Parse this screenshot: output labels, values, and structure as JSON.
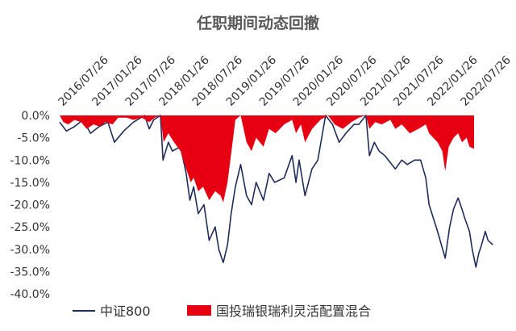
{
  "chart_data": {
    "type": "area",
    "title": "任职期间动态回撤",
    "xlabel": "",
    "ylabel": "",
    "x_ticks": [
      "2016/07/26",
      "2017/01/26",
      "2017/07/26",
      "2018/01/26",
      "2018/07/26",
      "2019/01/26",
      "2019/07/26",
      "2020/01/26",
      "2020/07/26",
      "2021/01/26",
      "2021/07/26",
      "2022/01/26",
      "2022/07/26"
    ],
    "y_ticks": [
      "0.0%",
      "-5.0%",
      "-10.0%",
      "-15.0%",
      "-20.0%",
      "-25.0%",
      "-30.0%",
      "-35.0%",
      "-40.0%"
    ],
    "ylim": [
      -40,
      0
    ],
    "x_range": [
      "2016/07/26",
      "2022/09/30"
    ],
    "grid": false,
    "legend_position": "bottom",
    "series": [
      {
        "name": "中证800",
        "kind": "line",
        "color": "#1f2d5a",
        "points": [
          [
            "2016/07/26",
            -1.5
          ],
          [
            "2016/09/01",
            -3.5
          ],
          [
            "2016/10/15",
            -2.5
          ],
          [
            "2016/11/30",
            -1.0
          ],
          [
            "2017/01/10",
            -4.0
          ],
          [
            "2017/02/26",
            -2.5
          ],
          [
            "2017/04/15",
            -1.5
          ],
          [
            "2017/05/20",
            -6.0
          ],
          [
            "2017/07/10",
            -3.5
          ],
          [
            "2017/09/01",
            -1.5
          ],
          [
            "2017/11/01",
            0.0
          ],
          [
            "2017/11/26",
            -3.0
          ],
          [
            "2017/12/20",
            -1.0
          ],
          [
            "2018/01/26",
            0.0
          ],
          [
            "2018/02/09",
            -10.0
          ],
          [
            "2018/03/10",
            -6.0
          ],
          [
            "2018/04/01",
            -8.0
          ],
          [
            "2018/05/15",
            -7.0
          ],
          [
            "2018/06/15",
            -13.0
          ],
          [
            "2018/07/05",
            -19.0
          ],
          [
            "2018/07/26",
            -16.0
          ],
          [
            "2018/08/20",
            -22.0
          ],
          [
            "2018/09/20",
            -20.0
          ],
          [
            "2018/10/18",
            -28.0
          ],
          [
            "2018/11/20",
            -25.0
          ],
          [
            "2018/12/10",
            -30.0
          ],
          [
            "2019/01/03",
            -33.0
          ],
          [
            "2019/01/26",
            -29.0
          ],
          [
            "2019/02/15",
            -22.0
          ],
          [
            "2019/03/10",
            -16.0
          ],
          [
            "2019/04/08",
            -11.0
          ],
          [
            "2019/05/10",
            -18.0
          ],
          [
            "2019/06/06",
            -20.0
          ],
          [
            "2019/07/01",
            -15.0
          ],
          [
            "2019/08/10",
            -19.0
          ],
          [
            "2019/09/10",
            -13.0
          ],
          [
            "2019/10/10",
            -15.0
          ],
          [
            "2019/12/01",
            -14.0
          ],
          [
            "2020/01/13",
            -9.0
          ],
          [
            "2020/02/03",
            -15.0
          ],
          [
            "2020/02/20",
            -10.0
          ],
          [
            "2020/03/23",
            -18.0
          ],
          [
            "2020/04/30",
            -12.0
          ],
          [
            "2020/06/01",
            -10.0
          ],
          [
            "2020/07/13",
            0.0
          ],
          [
            "2020/08/20",
            -2.0
          ],
          [
            "2020/09/25",
            -6.0
          ],
          [
            "2020/11/01",
            -4.0
          ],
          [
            "2020/12/15",
            -2.0
          ],
          [
            "2021/01/10",
            -2.0
          ],
          [
            "2021/02/18",
            0.0
          ],
          [
            "2021/03/09",
            -9.0
          ],
          [
            "2021/04/05",
            -6.0
          ],
          [
            "2021/05/01",
            -8.0
          ],
          [
            "2021/06/01",
            -9.0
          ],
          [
            "2021/07/28",
            -12.0
          ],
          [
            "2021/09/01",
            -10.0
          ],
          [
            "2021/10/01",
            -11.0
          ],
          [
            "2021/11/10",
            -10.0
          ],
          [
            "2021/12/13",
            -10.0
          ],
          [
            "2022/01/10",
            -14.0
          ],
          [
            "2022/01/28",
            -20.0
          ],
          [
            "2022/03/15",
            -26.0
          ],
          [
            "2022/04/26",
            -32.0
          ],
          [
            "2022/05/20",
            -25.0
          ],
          [
            "2022/06/10",
            -21.0
          ],
          [
            "2022/07/05",
            -18.5
          ],
          [
            "2022/07/26",
            -21.0
          ],
          [
            "2022/08/10",
            -23.0
          ],
          [
            "2022/09/05",
            -26.0
          ],
          [
            "2022/09/20",
            -30.0
          ],
          [
            "2022/09/30",
            -32.0
          ],
          [
            "2022/10/10",
            -34.0
          ],
          [
            "2022/10/25",
            -31.0
          ],
          [
            "2022/11/10",
            -29.0
          ],
          [
            "2022/11/30",
            -26.0
          ],
          [
            "2022/12/15",
            -28.0
          ],
          [
            "2023/01/10",
            -29.0
          ]
        ]
      },
      {
        "name": "国投瑞银瑞利灵活配置混合",
        "kind": "area",
        "color": "#e60012",
        "points": [
          [
            "2016/07/26",
            0.0
          ],
          [
            "2016/08/15",
            -1.5
          ],
          [
            "2016/09/10",
            -2.0
          ],
          [
            "2016/10/15",
            -1.0
          ],
          [
            "2016/11/20",
            -1.5
          ],
          [
            "2016/12/20",
            -3.0
          ],
          [
            "2017/01/26",
            -2.0
          ],
          [
            "2017/03/01",
            -2.5
          ],
          [
            "2017/04/01",
            -1.5
          ],
          [
            "2017/05/10",
            -2.0
          ],
          [
            "2017/06/10",
            -0.5
          ],
          [
            "2017/07/26",
            -0.5
          ],
          [
            "2017/09/01",
            -1.0
          ],
          [
            "2017/10/15",
            -0.5
          ],
          [
            "2017/11/26",
            -1.5
          ],
          [
            "2017/12/26",
            -0.5
          ],
          [
            "2018/01/26",
            0.0
          ],
          [
            "2018/02/12",
            -6.0
          ],
          [
            "2018/03/10",
            -4.0
          ],
          [
            "2018/04/10",
            -6.0
          ],
          [
            "2018/05/15",
            -8.0
          ],
          [
            "2018/06/15",
            -12.0
          ],
          [
            "2018/07/10",
            -15.0
          ],
          [
            "2018/07/26",
            -14.0
          ],
          [
            "2018/08/20",
            -17.0
          ],
          [
            "2018/09/15",
            -16.0
          ],
          [
            "2018/10/18",
            -19.0
          ],
          [
            "2018/11/20",
            -17.0
          ],
          [
            "2018/12/20",
            -18.0
          ],
          [
            "2019/01/03",
            -19.5
          ],
          [
            "2019/01/26",
            -15.0
          ],
          [
            "2019/02/20",
            -7.0
          ],
          [
            "2019/03/10",
            -1.0
          ],
          [
            "2019/04/08",
            0.0
          ],
          [
            "2019/05/10",
            -6.0
          ],
          [
            "2019/06/06",
            -8.0
          ],
          [
            "2019/07/01",
            -5.0
          ],
          [
            "2019/08/10",
            -7.0
          ],
          [
            "2019/09/10",
            -3.0
          ],
          [
            "2019/10/15",
            -4.0
          ],
          [
            "2019/12/01",
            -2.0
          ],
          [
            "2020/01/13",
            -1.0
          ],
          [
            "2020/02/03",
            -4.0
          ],
          [
            "2020/03/01",
            -2.0
          ],
          [
            "2020/03/23",
            -6.0
          ],
          [
            "2020/05/01",
            -3.0
          ],
          [
            "2020/06/15",
            -1.0
          ],
          [
            "2020/07/26",
            0.0
          ],
          [
            "2020/09/01",
            -2.0
          ],
          [
            "2020/10/15",
            -3.0
          ],
          [
            "2020/12/01",
            -1.5
          ],
          [
            "2021/01/10",
            -0.5
          ],
          [
            "2021/02/18",
            0.0
          ],
          [
            "2021/03/09",
            -3.0
          ],
          [
            "2021/04/10",
            -1.5
          ],
          [
            "2021/05/15",
            -2.0
          ],
          [
            "2021/07/01",
            -1.0
          ],
          [
            "2021/07/28",
            -3.0
          ],
          [
            "2021/09/01",
            -2.0
          ],
          [
            "2021/10/15",
            -4.0
          ],
          [
            "2021/12/01",
            -3.0
          ],
          [
            "2022/01/10",
            -2.0
          ],
          [
            "2022/01/28",
            -4.0
          ],
          [
            "2022/03/15",
            -6.0
          ],
          [
            "2022/04/10",
            -8.0
          ],
          [
            "2022/04/26",
            -12.5
          ],
          [
            "2022/05/15",
            -7.0
          ],
          [
            "2022/06/10",
            -5.0
          ],
          [
            "2022/07/05",
            -4.0
          ],
          [
            "2022/07/26",
            -6.0
          ],
          [
            "2022/08/20",
            -5.0
          ],
          [
            "2022/09/05",
            -7.0
          ],
          [
            "2022/09/30",
            -7.5
          ]
        ]
      }
    ]
  }
}
